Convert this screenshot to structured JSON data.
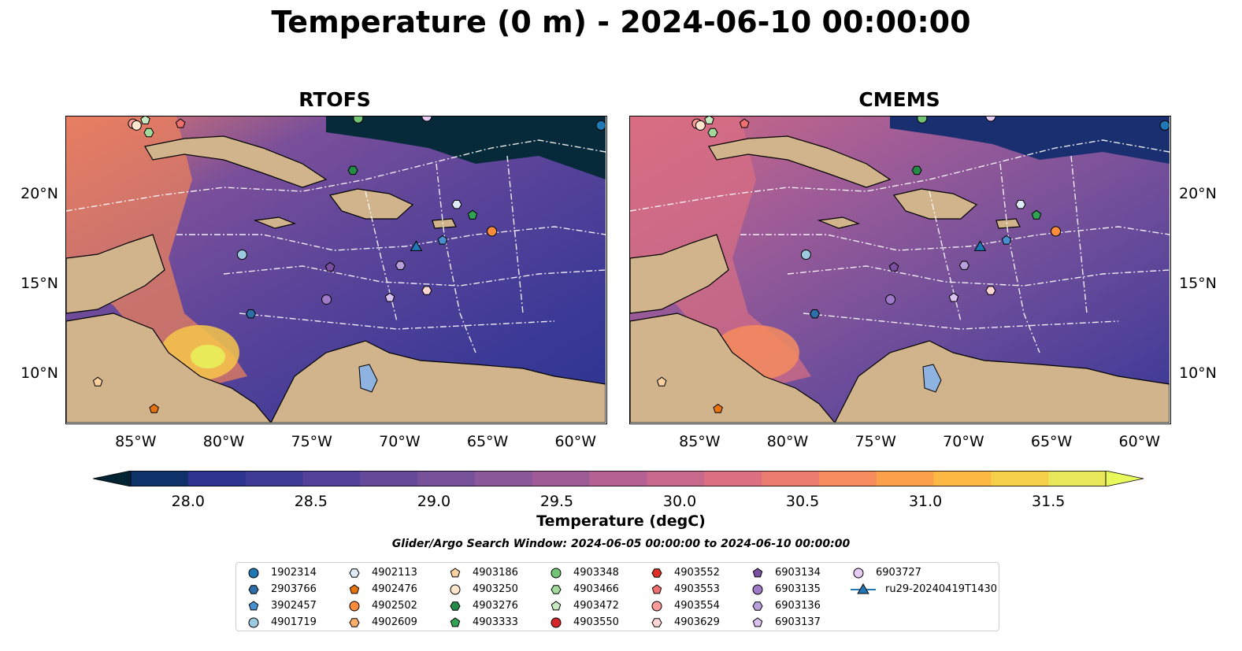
{
  "title": "Temperature (0 m) - 2024-06-10 00:00:00",
  "panels": [
    {
      "title": "RTOFS"
    },
    {
      "title": "CMEMS"
    }
  ],
  "axes": {
    "lat_labels": [
      "20°N",
      "15°N",
      "10°N"
    ],
    "lat_values": [
      20,
      15,
      10
    ],
    "lon_labels": [
      "85°W",
      "80°W",
      "75°W",
      "70°W",
      "65°W",
      "60°W"
    ],
    "lon_values": [
      -85,
      -80,
      -75,
      -70,
      -65,
      -60
    ],
    "lon_range": [
      -89,
      -58.2
    ],
    "lat_range": [
      7.2,
      24.4
    ]
  },
  "colorbar": {
    "label": "Temperature (degC)",
    "tick_labels": [
      "28.0",
      "28.5",
      "29.0",
      "29.5",
      "30.0",
      "30.5",
      "31.0",
      "31.5"
    ],
    "ticks": [
      28.0,
      28.5,
      29.0,
      29.5,
      30.0,
      30.5,
      31.0,
      31.5
    ],
    "range": [
      28.0,
      31.5
    ],
    "extend": "both",
    "colormap": "thermal",
    "colors": [
      "#032333",
      "#0f3169",
      "#2c3490",
      "#3e3b97",
      "#53429a",
      "#654a9a",
      "#77519a",
      "#8a5799",
      "#9e5c97",
      "#b36293",
      "#c8688c",
      "#dc6f82",
      "#ec7b70",
      "#f68c5e",
      "#fba14b",
      "#fcb842",
      "#f6cf48",
      "#e8e85a",
      "#e8fa5b"
    ]
  },
  "search_window": "Glider/Argo Search Window: 2024-06-05 00:00:00 to 2024-06-10 00:00:00",
  "legend": {
    "items": [
      {
        "label": "1902314",
        "shape": "circle",
        "color": "#1f77b4"
      },
      {
        "label": "2903766",
        "shape": "hexagon",
        "color": "#2b6ea8"
      },
      {
        "label": "3902457",
        "shape": "pentagon",
        "color": "#4a90d0"
      },
      {
        "label": "4901719",
        "shape": "circle",
        "color": "#9ecae1"
      },
      {
        "label": "4902113",
        "shape": "hexagon",
        "color": "#deebf7"
      },
      {
        "label": "4902476",
        "shape": "pentagon",
        "color": "#e6730e"
      },
      {
        "label": "4902502",
        "shape": "circle",
        "color": "#fd8d3c"
      },
      {
        "label": "4902609",
        "shape": "hexagon",
        "color": "#fdae6b"
      },
      {
        "label": "4903186",
        "shape": "pentagon",
        "color": "#fdd0a2"
      },
      {
        "label": "4903250",
        "shape": "circle",
        "color": "#fee6ce"
      },
      {
        "label": "4903276",
        "shape": "hexagon",
        "color": "#238b45"
      },
      {
        "label": "4903333",
        "shape": "pentagon",
        "color": "#31a354"
      },
      {
        "label": "4903348",
        "shape": "circle",
        "color": "#74c476"
      },
      {
        "label": "4903466",
        "shape": "hexagon",
        "color": "#a1d99b"
      },
      {
        "label": "4903472",
        "shape": "pentagon",
        "color": "#c7e9c0"
      },
      {
        "label": "4903550",
        "shape": "circle",
        "color": "#d62728"
      },
      {
        "label": "4903552",
        "shape": "hexagon",
        "color": "#de2d26"
      },
      {
        "label": "4903553",
        "shape": "pentagon",
        "color": "#f07070"
      },
      {
        "label": "4903554",
        "shape": "circle",
        "color": "#fc9a9a"
      },
      {
        "label": "4903629",
        "shape": "hexagon",
        "color": "#fdd5d5"
      },
      {
        "label": "6903134",
        "shape": "pentagon",
        "color": "#7b4fa0"
      },
      {
        "label": "6903135",
        "shape": "circle",
        "color": "#9e7ac8"
      },
      {
        "label": "6903136",
        "shape": "hexagon",
        "color": "#b9a0dd"
      },
      {
        "label": "6903137",
        "shape": "pentagon",
        "color": "#d9c2f0"
      },
      {
        "label": "6903727",
        "shape": "circle",
        "color": "#e6ccf5"
      },
      {
        "label": "ru29-20240419T1430",
        "shape": "triangle-line",
        "color": "#1f77b4"
      }
    ]
  },
  "markers": [
    {
      "id": "1902314",
      "lon": -58.6,
      "lat": 23.9
    },
    {
      "id": "4902113",
      "lon": -66.8,
      "lat": 19.5
    },
    {
      "id": "4903333",
      "lon": -65.9,
      "lat": 18.9
    },
    {
      "id": "3902457",
      "lon": -67.6,
      "lat": 17.5
    },
    {
      "id": "4902502",
      "lon": -64.8,
      "lat": 18.0
    },
    {
      "id": "4903276",
      "lon": -72.7,
      "lat": 21.4
    },
    {
      "id": "4903348",
      "lon": -72.4,
      "lat": 24.3
    },
    {
      "id": "4903466",
      "lon": -84.3,
      "lat": 23.5
    },
    {
      "id": "4903472",
      "lon": -84.5,
      "lat": 24.2
    },
    {
      "id": "4903553",
      "lon": -82.5,
      "lat": 24.0
    },
    {
      "id": "4903554",
      "lon": -85.2,
      "lat": 24.0
    },
    {
      "id": "4903250",
      "lon": -85.0,
      "lat": 23.9
    },
    {
      "id": "6903727",
      "lon": -68.5,
      "lat": 24.4
    },
    {
      "id": "4901719",
      "lon": -79.0,
      "lat": 16.7
    },
    {
      "id": "2903766",
      "lon": -78.5,
      "lat": 13.4
    },
    {
      "id": "6903134",
      "lon": -74.0,
      "lat": 16.0
    },
    {
      "id": "6903136",
      "lon": -70.0,
      "lat": 16.1
    },
    {
      "id": "6903135",
      "lon": -74.2,
      "lat": 14.2
    },
    {
      "id": "6903137",
      "lon": -70.6,
      "lat": 14.3
    },
    {
      "id": "4903629",
      "lon": -68.5,
      "lat": 14.7
    },
    {
      "id": "4903186",
      "lon": -87.2,
      "lat": 9.6
    },
    {
      "id": "4902476",
      "lon": -84.0,
      "lat": 8.1
    },
    {
      "id": "ru29-20240419T1430",
      "lon": -69.1,
      "lat": 17.1
    }
  ]
}
